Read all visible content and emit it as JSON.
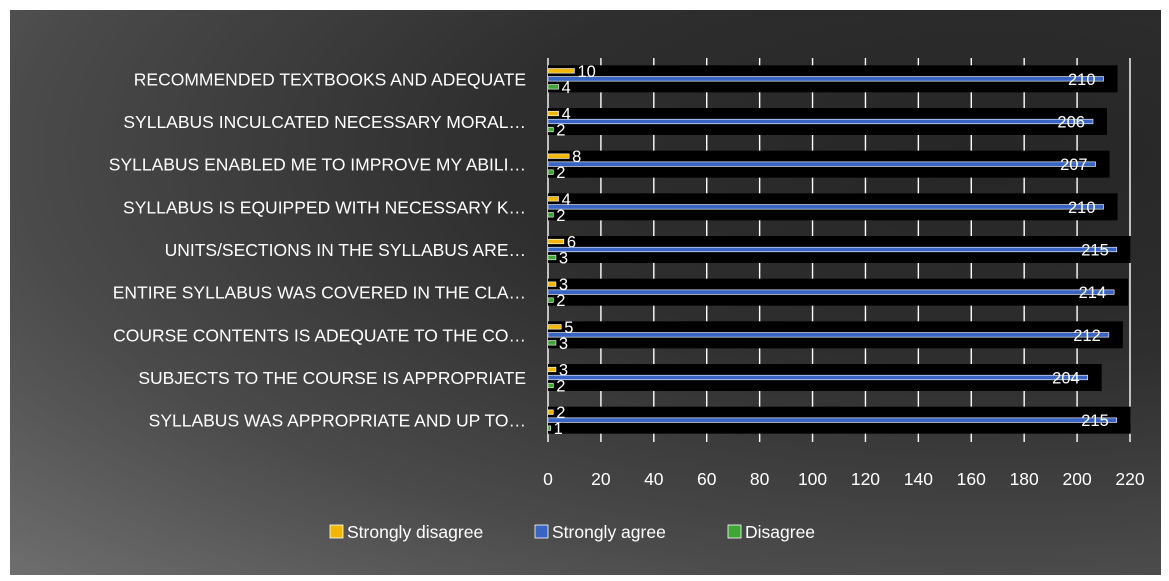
{
  "chart_data": {
    "type": "bar",
    "orientation": "horizontal",
    "categories": [
      "RECOMMENDED TEXTBOOKS AND ADEQUATE",
      "SYLLABUS INCULCATED NECESSARY MORAL…",
      "SYLLABUS ENABLED ME TO IMPROVE MY ABILI…",
      "SYLLABUS IS EQUIPPED WITH NECESSARY K…",
      "UNITS/SECTIONS IN THE SYLLABUS ARE…",
      "ENTIRE SYLLABUS WAS COVERED IN THE CLA…",
      "COURSE CONTENTS IS ADEQUATE TO THE CO…",
      "SUBJECTS TO THE COURSE IS APPROPRIATE",
      "SYLLABUS WAS APPROPRIATE AND UP TO…"
    ],
    "series": [
      {
        "name": "Strongly disagree",
        "color": "#f2b705",
        "values": [
          10,
          4,
          8,
          4,
          6,
          3,
          5,
          3,
          2
        ]
      },
      {
        "name": "Strongly agree",
        "color": "#3a64c4",
        "values": [
          210,
          206,
          207,
          210,
          215,
          214,
          212,
          204,
          215
        ]
      },
      {
        "name": "Disagree",
        "color": "#3fa535",
        "values": [
          4,
          2,
          2,
          2,
          3,
          2,
          3,
          2,
          1
        ]
      }
    ],
    "xlim": [
      0,
      220
    ],
    "xticks": [
      0,
      20,
      40,
      60,
      80,
      100,
      120,
      140,
      160,
      180,
      200,
      220
    ],
    "grid": true,
    "legend_position": "bottom"
  }
}
